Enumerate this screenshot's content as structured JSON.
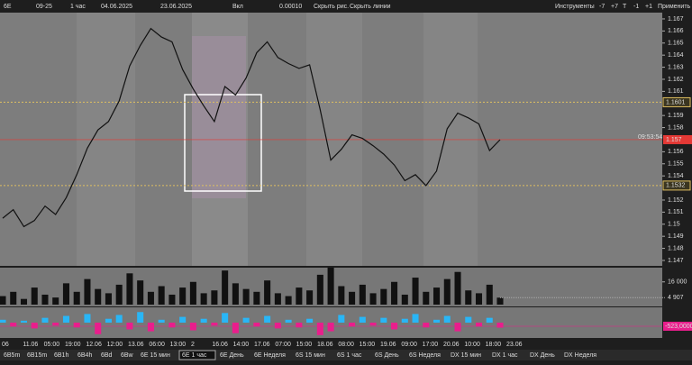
{
  "toolbar": {
    "symbol": "6E",
    "contract": "09-25",
    "timeframe": "1 час",
    "date_from": "04.06.2025",
    "date_to": "23.06.2025",
    "mode": "Вкл",
    "tick": "0.00010",
    "hide_drawings": "Скрыть рис.",
    "hide_lines": "Скрыть линии",
    "tools": "Инструменты",
    "buttons": [
      "-7",
      "+7",
      "T",
      "-1",
      "+1"
    ],
    "apply": "Применить"
  },
  "chart_data": {
    "type": "line",
    "color": "#111111",
    "values": [
      1.1505,
      1.1512,
      1.1498,
      1.1503,
      1.1515,
      1.1508,
      1.1522,
      1.1541,
      1.1563,
      1.1578,
      1.1585,
      1.1602,
      1.1631,
      1.1648,
      1.1662,
      1.1655,
      1.1651,
      1.1628,
      1.1612,
      1.1598,
      1.1585,
      1.1614,
      1.1607,
      1.1621,
      1.1642,
      1.1651,
      1.1638,
      1.1633,
      1.1629,
      1.1632,
      1.1595,
      1.1553,
      1.1562,
      1.1574,
      1.1571,
      1.1565,
      1.1558,
      1.1549,
      1.1536,
      1.1541,
      1.1532,
      1.1544,
      1.1579,
      1.1592,
      1.1588,
      1.1583,
      1.1561,
      1.157
    ],
    "ylim": [
      1.14655,
      1.16752
    ],
    "yticks": [
      1.167,
      1.166,
      1.165,
      1.164,
      1.163,
      1.162,
      1.161,
      1.159,
      1.158,
      1.156,
      1.155,
      1.154,
      1.152,
      1.151,
      1.15,
      1.149,
      1.148,
      1.147
    ],
    "levels": [
      {
        "value": 1.1601,
        "label": "1.1601"
      },
      {
        "value": 1.1532,
        "label": "1.1532"
      }
    ],
    "current": {
      "value": 1.157,
      "label": "1.157",
      "time": "09:53:54"
    },
    "x_labels": [
      "06",
      "11.06",
      "05:00",
      "19:00",
      "12.06",
      "12:00",
      "13.06",
      "06:00",
      "13:00",
      "2",
      "16.06",
      "14:00",
      "17.06",
      "07:00",
      "15:00",
      "18.06",
      "08:00",
      "15:00",
      "19.06",
      "09:00",
      "17:00",
      "20.06",
      "10:00",
      "18:00",
      "23.06"
    ]
  },
  "volume": {
    "type": "bar",
    "color": "#111111",
    "values": [
      6000,
      9000,
      4000,
      12000,
      7000,
      5000,
      15000,
      9000,
      18000,
      11000,
      8000,
      14000,
      22000,
      17000,
      9000,
      13000,
      7000,
      12000,
      16000,
      8000,
      10000,
      24000,
      15000,
      11000,
      9000,
      17000,
      8000,
      6000,
      12000,
      10000,
      21000,
      26000,
      13000,
      9000,
      14000,
      8000,
      11000,
      16000,
      7000,
      19000,
      9000,
      12000,
      18000,
      23000,
      10000,
      8000,
      14000,
      4907
    ],
    "ylim": [
      0,
      26000
    ],
    "yticks": [
      {
        "value": 16000,
        "label": "16 000"
      },
      {
        "value": 4907,
        "label": "4 907"
      }
    ]
  },
  "delta": {
    "type": "bar",
    "up_color": "#29b6f6",
    "down_color": "#e91e8c",
    "values": [
      300,
      -400,
      200,
      -600,
      500,
      -300,
      700,
      -500,
      900,
      -1200,
      400,
      800,
      -700,
      1100,
      -900,
      300,
      -500,
      600,
      -800,
      400,
      -300,
      1000,
      -1100,
      500,
      -400,
      700,
      -600,
      300,
      -500,
      400,
      -1300,
      -900,
      800,
      -400,
      600,
      -300,
      500,
      -700,
      400,
      900,
      -500,
      300,
      700,
      -900,
      600,
      -400,
      500,
      -523
    ],
    "ylim": [
      -1500,
      1500
    ],
    "label": "-523,0000"
  },
  "tabs": [
    "6B5m",
    "6B15m",
    "6B1h",
    "6B4h",
    "6Bd",
    "6Bw",
    "6E 15 мин",
    "6E 1 час",
    "6E День",
    "6E Неделя",
    "6S 15 мин",
    "6S 1 час",
    "6S День",
    "6S Неделя",
    "DX 15 мин",
    "DX 1 час",
    "DX День",
    "DX Неделя"
  ]
}
